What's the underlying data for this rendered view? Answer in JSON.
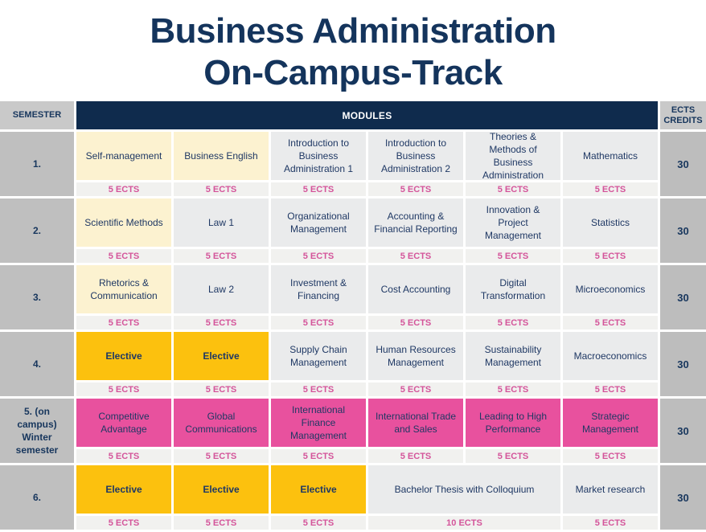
{
  "title": {
    "line1": "Business Administration",
    "line2": "On-Campus-Track"
  },
  "header": {
    "semester": "SEMESTER",
    "modules": "MODULES",
    "ects": "ECTS\nCREDITS"
  },
  "colors": {
    "title_navy": "#14345c",
    "modules_header_bg": "#0f2b4d",
    "header_gray": "#c9c9c9",
    "semester_gray": "#bfbfbf",
    "module_gray": "#eaebec",
    "module_cream": "#fcf2d0",
    "elective_gold": "#fcc10e",
    "oncampus_pink": "#e8519e",
    "ects_row_bg": "#f1f1ef",
    "ects_text_pink": "#d4549a",
    "body_text_navy": "#1f3864"
  },
  "rows": [
    {
      "semester": "1.",
      "total": "30",
      "modules": [
        {
          "label": "Self-management",
          "ects": "5 ECTS",
          "style": "cream",
          "span": 1
        },
        {
          "label": "Business English",
          "ects": "5 ECTS",
          "style": "cream",
          "span": 1
        },
        {
          "label": "Introduction to Business Administration 1",
          "ects": "5 ECTS",
          "style": "gray",
          "span": 1
        },
        {
          "label": "Introduction to Business Administration 2",
          "ects": "5 ECTS",
          "style": "gray",
          "span": 1
        },
        {
          "label": "Theories & Methods of Business Administration",
          "ects": "5 ECTS",
          "style": "gray",
          "span": 1
        },
        {
          "label": "Mathematics",
          "ects": "5 ECTS",
          "style": "gray",
          "span": 1
        }
      ]
    },
    {
      "semester": "2.",
      "total": "30",
      "modules": [
        {
          "label": "Scientific Methods",
          "ects": "5 ECTS",
          "style": "cream",
          "span": 1
        },
        {
          "label": "Law 1",
          "ects": "5 ECTS",
          "style": "gray",
          "span": 1
        },
        {
          "label": "Organizational Management",
          "ects": "5 ECTS",
          "style": "gray",
          "span": 1
        },
        {
          "label": "Accounting & Financial Reporting",
          "ects": "5 ECTS",
          "style": "gray",
          "span": 1
        },
        {
          "label": "Innovation & Project Management",
          "ects": "5 ECTS",
          "style": "gray",
          "span": 1
        },
        {
          "label": "Statistics",
          "ects": "5 ECTS",
          "style": "gray",
          "span": 1
        }
      ]
    },
    {
      "semester": "3.",
      "total": "30",
      "modules": [
        {
          "label": "Rhetorics & Communication",
          "ects": "5 ECTS",
          "style": "cream",
          "span": 1
        },
        {
          "label": "Law 2",
          "ects": "5 ECTS",
          "style": "gray",
          "span": 1
        },
        {
          "label": "Investment & Financing",
          "ects": "5 ECTS",
          "style": "gray",
          "span": 1
        },
        {
          "label": "Cost Accounting",
          "ects": "5 ECTS",
          "style": "gray",
          "span": 1
        },
        {
          "label": "Digital Transformation",
          "ects": "5 ECTS",
          "style": "gray",
          "span": 1
        },
        {
          "label": "Microeconomics",
          "ects": "5 ECTS",
          "style": "gray",
          "span": 1
        }
      ]
    },
    {
      "semester": "4.",
      "total": "30",
      "modules": [
        {
          "label": "Elective",
          "ects": "5 ECTS",
          "style": "gold",
          "span": 1
        },
        {
          "label": "Elective",
          "ects": "5 ECTS",
          "style": "gold",
          "span": 1
        },
        {
          "label": "Supply Chain Management",
          "ects": "5 ECTS",
          "style": "gray",
          "span": 1
        },
        {
          "label": "Human Resources Management",
          "ects": "5 ECTS",
          "style": "gray",
          "span": 1
        },
        {
          "label": "Sustainability Management",
          "ects": "5 ECTS",
          "style": "gray",
          "span": 1
        },
        {
          "label": "Macroeconomics",
          "ects": "5 ECTS",
          "style": "gray",
          "span": 1
        }
      ]
    },
    {
      "semester": "5. (on campus)\nWinter\nsemester",
      "total": "30",
      "modules": [
        {
          "label": "Competitive Advantage",
          "ects": "5 ECTS",
          "style": "pink",
          "span": 1
        },
        {
          "label": "Global Communications",
          "ects": "5 ECTS",
          "style": "pink",
          "span": 1
        },
        {
          "label": "International Finance Management",
          "ects": "5 ECTS",
          "style": "pink",
          "span": 1
        },
        {
          "label": "International Trade and Sales",
          "ects": "5 ECTS",
          "style": "pink",
          "span": 1
        },
        {
          "label": "Leading to High Performance",
          "ects": "5 ECTS",
          "style": "pink",
          "span": 1
        },
        {
          "label": "Strategic Management",
          "ects": "5 ECTS",
          "style": "pink",
          "span": 1
        }
      ]
    },
    {
      "semester": "6.",
      "total": "30",
      "modules": [
        {
          "label": "Elective",
          "ects": "5 ECTS",
          "style": "gold",
          "span": 1
        },
        {
          "label": "Elective",
          "ects": "5 ECTS",
          "style": "gold",
          "span": 1
        },
        {
          "label": "Elective",
          "ects": "5 ECTS",
          "style": "gold",
          "span": 1
        },
        {
          "label": "Bachelor Thesis with Colloquium",
          "ects": "10 ECTS",
          "style": "gray",
          "span": 2
        },
        {
          "label": "Market research",
          "ects": "5 ECTS",
          "style": "gray",
          "span": 1
        }
      ]
    }
  ]
}
